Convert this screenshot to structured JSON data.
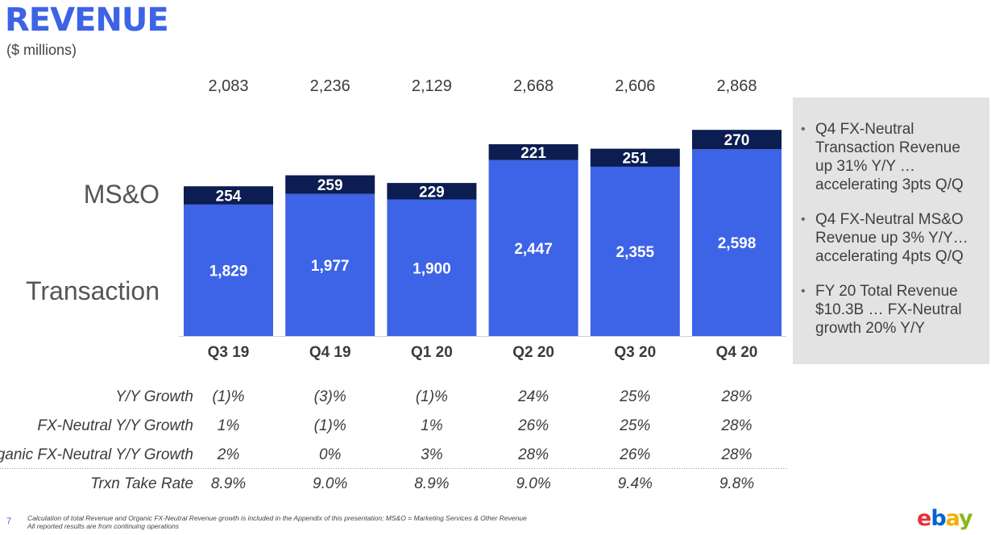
{
  "page": {
    "title": "REVENUE",
    "subtitle": "($ millions)",
    "slide_number": "7",
    "footnote_lines": [
      "Calculation of total Revenue and Organic FX-Neutral Revenue growth is included in the Appendix of this presentation; MS&O = Marketing Services & Other Revenue",
      "All reported results are from continuing operations"
    ],
    "logo_letters": [
      "e",
      "b",
      "a",
      "y"
    ]
  },
  "callout": {
    "bullets": [
      "Q4 FX-Neutral Transaction Revenue up 31% Y/Y … accelerating 3pts Q/Q",
      "Q4 FX-Neutral MS&O Revenue up 3% Y/Y… accelerating 4pts Q/Q",
      "FY 20 Total Revenue $10.3B … FX-Neutral growth 20% Y/Y"
    ]
  },
  "colors": {
    "transaction": "#3d63e6",
    "mso": "#0b1d51",
    "title": "#3d63e6",
    "text": "#3b3b3b",
    "callout_bg": "#e3e3e3"
  },
  "chart_data": {
    "type": "bar",
    "stacked": true,
    "categories": [
      "Q3 19",
      "Q4 19",
      "Q1 20",
      "Q2 20",
      "Q3 20",
      "Q4 20"
    ],
    "series": [
      {
        "name": "Transaction",
        "values": [
          1829,
          1977,
          1900,
          2447,
          2355,
          2598
        ]
      },
      {
        "name": "MS&O",
        "values": [
          254,
          259,
          229,
          221,
          251,
          270
        ]
      }
    ],
    "totals": [
      2083,
      2236,
      2129,
      2668,
      2606,
      2868
    ],
    "value_labels": {
      "Transaction": [
        "1,829",
        "1,977",
        "1,900",
        "2,447",
        "2,355",
        "2,598"
      ],
      "MS&O": [
        "254",
        "259",
        "229",
        "221",
        "251",
        "270"
      ],
      "totals": [
        "2,083",
        "2,236",
        "2,129",
        "2,668",
        "2,606",
        "2,868"
      ]
    },
    "legend": "left",
    "grid": false,
    "ylim": [
      0,
      2868
    ],
    "table": [
      {
        "label": "Y/Y Growth",
        "values": [
          "(1)%",
          "(3)%",
          "(1)%",
          "24%",
          "25%",
          "28%"
        ]
      },
      {
        "label": "FX-Neutral Y/Y Growth",
        "values": [
          "1%",
          "(1)%",
          "1%",
          "26%",
          "25%",
          "28%"
        ]
      },
      {
        "label": "Organic FX-Neutral Y/Y Growth",
        "values": [
          "2%",
          "0%",
          "3%",
          "28%",
          "26%",
          "28%"
        ]
      },
      {
        "label": "Trxn Take Rate",
        "values": [
          "8.9%",
          "9.0%",
          "8.9%",
          "9.0%",
          "9.4%",
          "9.8%"
        ]
      }
    ]
  }
}
